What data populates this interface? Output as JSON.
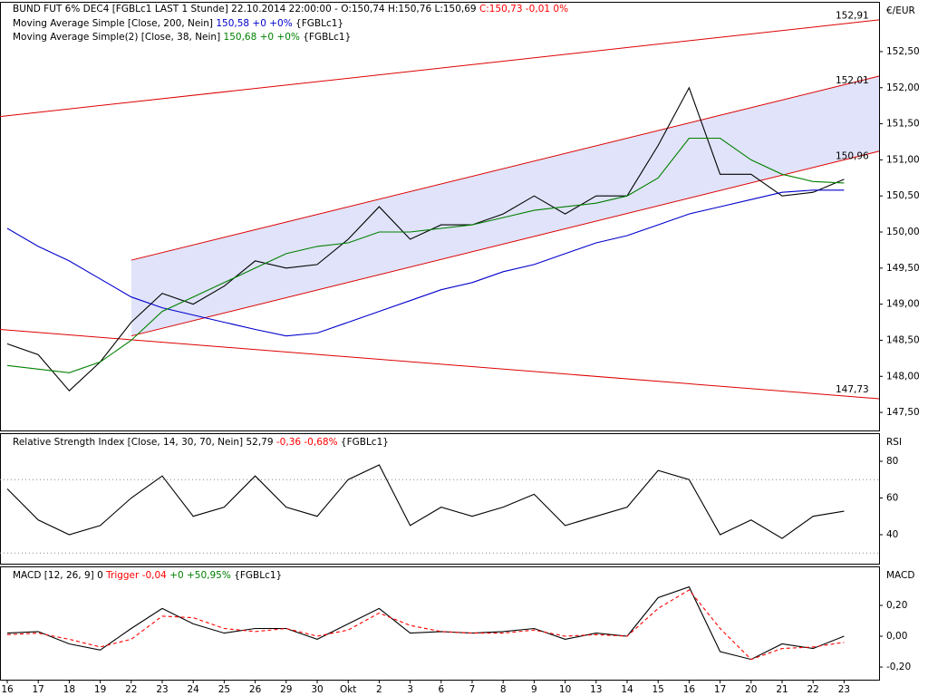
{
  "header": {
    "symbol": "BUND FUT 6% DEC4 [FGBLc1 LAST 1 Stunde] 22.10.2014 22:00:00 - O:150,74 H:150,76 L:150,69",
    "close": "C:150,73 -0,01 0%",
    "currency": "€/EUR"
  },
  "chart_data": [
    {
      "type": "line",
      "name": "price",
      "legend": [
        {
          "label": "Moving Average Simple [Close, 200, Nein]",
          "value": "150,58 +0 +0%",
          "source": "{FGBLc1}"
        },
        {
          "label": "Moving Average Simple(2) [Close, 38, Nein]",
          "value": "150,68 +0 +0%",
          "source": "{FGBLc1}"
        }
      ],
      "categories": [
        "16",
        "17",
        "18",
        "19",
        "22",
        "23",
        "24",
        "25",
        "26",
        "29",
        "30",
        "Okt",
        "2",
        "3",
        "6",
        "7",
        "8",
        "9",
        "10",
        "13",
        "14",
        "15",
        "16",
        "17",
        "20",
        "21",
        "22",
        "23"
      ],
      "ylim": [
        147.25,
        153.19
      ],
      "yticks": [
        {
          "value": 147.5,
          "label": "147,50"
        },
        {
          "value": 148,
          "label": "148,00"
        },
        {
          "value": 148.5,
          "label": "148,50"
        },
        {
          "value": 149,
          "label": "149,00"
        },
        {
          "value": 149.5,
          "label": "149,50"
        },
        {
          "value": 150,
          "label": "150,00"
        },
        {
          "value": 150.5,
          "label": "150,50"
        },
        {
          "value": 151,
          "label": "151,00"
        },
        {
          "value": 151.5,
          "label": "151,50"
        },
        {
          "value": 152,
          "label": "152,00"
        },
        {
          "value": 152.5,
          "label": "152,50"
        }
      ],
      "trend_lines": [
        {
          "start": 151.6,
          "end": 152.94,
          "label": {
            "value": 152.91,
            "label": "152,91"
          }
        },
        {
          "start": 149.61,
          "end": 152.16,
          "label": {
            "value": 152.01,
            "label": "152,01"
          }
        },
        {
          "start": 148.56,
          "end": 151.12,
          "label": {
            "value": 150.96,
            "label": "150,96"
          }
        },
        {
          "start": 148.65,
          "end": 147.69,
          "label": {
            "value": 147.73,
            "label": "147,73"
          }
        }
      ],
      "series": [
        {
          "name": "Close",
          "color": "#000000",
          "values": [
            148.45,
            148.3,
            147.8,
            148.2,
            148.75,
            149.15,
            149.0,
            149.25,
            149.6,
            149.5,
            149.55,
            149.9,
            150.35,
            149.9,
            150.1,
            150.1,
            150.25,
            150.5,
            150.25,
            150.5,
            150.5,
            151.2,
            152.0,
            150.8,
            150.8,
            150.5,
            150.55,
            150.73
          ]
        },
        {
          "name": "SMA 200",
          "color": "#0000cc",
          "values": [
            150.05,
            149.8,
            149.6,
            149.35,
            149.1,
            148.95,
            148.85,
            148.75,
            148.65,
            148.56,
            148.6,
            148.75,
            148.9,
            149.05,
            149.2,
            149.3,
            149.45,
            149.55,
            149.7,
            149.85,
            149.95,
            150.1,
            150.25,
            150.35,
            150.45,
            150.55,
            150.58,
            150.58
          ]
        },
        {
          "name": "SMA 38",
          "color": "#008000",
          "values": [
            148.15,
            148.1,
            148.05,
            148.2,
            148.5,
            148.9,
            149.1,
            149.3,
            149.5,
            149.7,
            149.8,
            149.85,
            150.0,
            150.0,
            150.05,
            150.1,
            150.2,
            150.3,
            150.35,
            150.4,
            150.5,
            150.75,
            151.3,
            151.3,
            151.0,
            150.8,
            150.7,
            150.68
          ]
        }
      ]
    },
    {
      "type": "line",
      "name": "rsi",
      "legend": [
        {
          "label": "Relative Strength Index [Close, 14, 30, 70, Nein] 52,79",
          "value": "-0,36 -0,68%",
          "source": "{FGBLc1}"
        }
      ],
      "axis_label": "RSI",
      "ylim": [
        24.2,
        95.3
      ],
      "yticks": [
        40,
        60,
        80
      ],
      "levels": [
        30,
        70
      ],
      "series": [
        {
          "name": "RSI",
          "color": "#000000",
          "values": [
            65,
            48,
            40,
            45,
            60,
            72,
            50,
            55,
            72,
            55,
            50,
            70,
            78,
            45,
            55,
            50,
            55,
            62,
            45,
            50,
            55,
            75,
            70,
            40,
            48,
            38,
            50,
            52.79
          ]
        }
      ]
    },
    {
      "type": "line",
      "name": "macd",
      "legend": [
        {
          "label": "MACD [12, 26, 9] 0",
          "value": "Trigger -0,04",
          "change": "+0 +50,95%",
          "source": "{FGBLc1}"
        }
      ],
      "axis_label": "MACD",
      "ylim": [
        -0.282,
        0.453
      ],
      "yticks": [
        {
          "value": -0.2,
          "label": "-0,20"
        },
        {
          "value": 0,
          "label": "0,00"
        },
        {
          "value": 0.2,
          "label": "0,20"
        }
      ],
      "series": [
        {
          "name": "MACD",
          "color": "#000000",
          "values": [
            0.02,
            0.03,
            -0.05,
            -0.09,
            0.05,
            0.18,
            0.08,
            0.02,
            0.05,
            0.05,
            -0.02,
            0.08,
            0.18,
            0.02,
            0.03,
            0.02,
            0.03,
            0.05,
            -0.02,
            0.02,
            0.0,
            0.25,
            0.32,
            -0.1,
            -0.15,
            -0.05,
            -0.08,
            0.0
          ]
        },
        {
          "name": "Trigger",
          "color": "#ff0000",
          "dash": true,
          "values": [
            0.01,
            0.02,
            -0.02,
            -0.07,
            -0.02,
            0.13,
            0.12,
            0.05,
            0.03,
            0.05,
            0.0,
            0.04,
            0.15,
            0.07,
            0.03,
            0.02,
            0.02,
            0.04,
            0.0,
            0.01,
            0.0,
            0.18,
            0.3,
            0.05,
            -0.15,
            -0.08,
            -0.07,
            -0.04
          ]
        }
      ]
    }
  ]
}
